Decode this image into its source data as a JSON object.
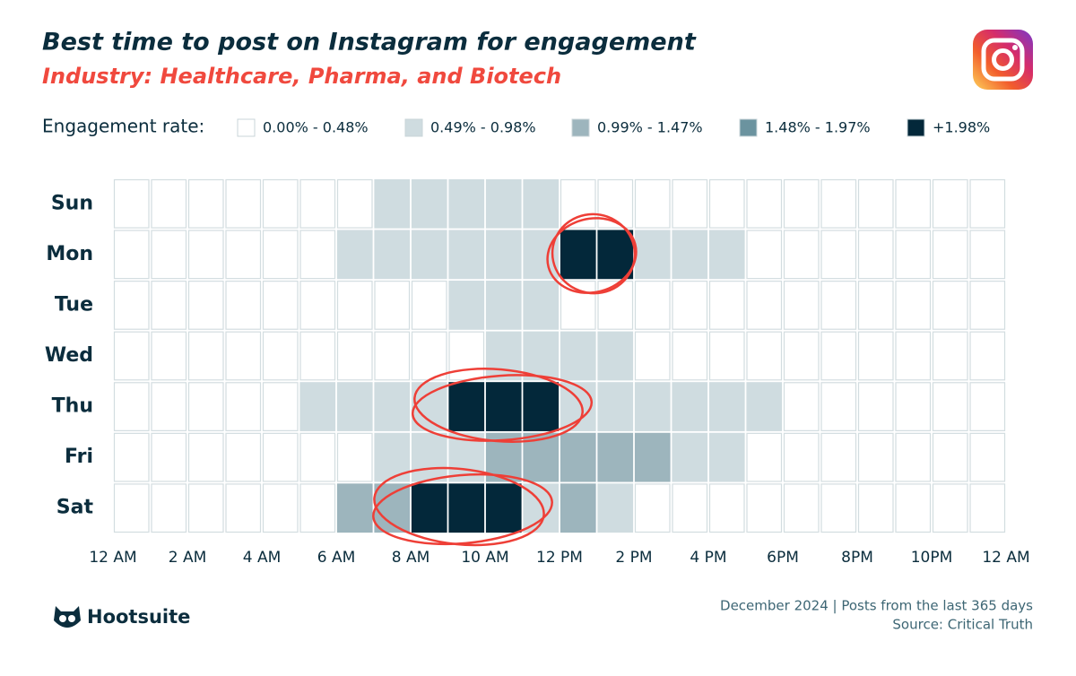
{
  "chart_data": {
    "type": "heatmap",
    "title": "Best time to post on Instagram for engagement",
    "subtitle": "Industry: Healthcare, Pharma, and Biotech",
    "legend_title": "Engagement rate:",
    "bins": [
      {
        "label": "0.00% - 0.48%",
        "color": "#ffffff"
      },
      {
        "label": "0.49% - 0.98%",
        "color": "#cfdce0"
      },
      {
        "label": "0.99% - 1.47%",
        "color": "#9db5bd"
      },
      {
        "label": "1.48% - 1.97%",
        "color": "#6b939f"
      },
      {
        "label": "+1.98%",
        "color": "#03283a"
      }
    ],
    "categories": [
      "Sun",
      "Mon",
      "Tue",
      "Wed",
      "Thu",
      "Fri",
      "Sat"
    ],
    "xlim": [
      0,
      24
    ],
    "xticks": [
      {
        "value": 0,
        "label": "12 AM"
      },
      {
        "value": 2,
        "label": "2 AM"
      },
      {
        "value": 4,
        "label": "4 AM"
      },
      {
        "value": 6,
        "label": "6 AM"
      },
      {
        "value": 8,
        "label": "8 AM"
      },
      {
        "value": 10,
        "label": "10 AM"
      },
      {
        "value": 12,
        "label": "12 PM"
      },
      {
        "value": 14,
        "label": "2 PM"
      },
      {
        "value": 16,
        "label": "4 PM"
      },
      {
        "value": 18,
        "label": "6PM"
      },
      {
        "value": 20,
        "label": "8PM"
      },
      {
        "value": 22,
        "label": "10PM"
      },
      {
        "value": 24,
        "label": "12 AM"
      }
    ],
    "values": [
      [
        0,
        0,
        0,
        0,
        0,
        0,
        0,
        1,
        1,
        1,
        1,
        1,
        0,
        0,
        0,
        0,
        0,
        0,
        0,
        0,
        0,
        0,
        0,
        0
      ],
      [
        0,
        0,
        0,
        0,
        0,
        0,
        1,
        1,
        1,
        1,
        1,
        1,
        4,
        4,
        1,
        1,
        1,
        0,
        0,
        0,
        0,
        0,
        0,
        0
      ],
      [
        0,
        0,
        0,
        0,
        0,
        0,
        0,
        0,
        0,
        1,
        1,
        1,
        0,
        0,
        0,
        0,
        0,
        0,
        0,
        0,
        0,
        0,
        0,
        0
      ],
      [
        0,
        0,
        0,
        0,
        0,
        0,
        0,
        0,
        0,
        0,
        1,
        1,
        1,
        1,
        0,
        0,
        0,
        0,
        0,
        0,
        0,
        0,
        0,
        0
      ],
      [
        0,
        0,
        0,
        0,
        0,
        1,
        1,
        1,
        1,
        4,
        4,
        4,
        1,
        1,
        1,
        1,
        1,
        1,
        0,
        0,
        0,
        0,
        0,
        0
      ],
      [
        0,
        0,
        0,
        0,
        0,
        0,
        0,
        1,
        1,
        1,
        2,
        2,
        2,
        2,
        2,
        1,
        1,
        0,
        0,
        0,
        0,
        0,
        0,
        0
      ],
      [
        0,
        0,
        0,
        0,
        0,
        0,
        2,
        2,
        4,
        4,
        4,
        1,
        2,
        1,
        0,
        0,
        0,
        0,
        0,
        0,
        0,
        0,
        0,
        0
      ]
    ]
  },
  "footer": {
    "brand": "Hootsuite",
    "note": "December 2024 | Posts from the last 365 days",
    "source": "Source: Critical Truth"
  }
}
